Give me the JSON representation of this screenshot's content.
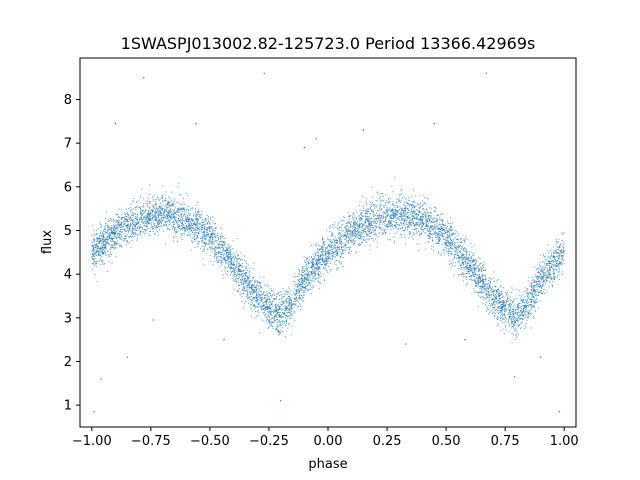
{
  "chart_data": {
    "type": "scatter",
    "title": "1SWASPJ013002.82-125723.0 Period 13366.42969s",
    "xlabel": "phase",
    "ylabel": "flux",
    "xlim": [
      -1.05,
      1.05
    ],
    "ylim": [
      0.5,
      8.95
    ],
    "xticks": [
      -1.0,
      -0.75,
      -0.5,
      -0.25,
      0.0,
      0.25,
      0.5,
      0.75,
      1.0
    ],
    "xtick_labels": [
      "−1.00",
      "−0.75",
      "−0.50",
      "−0.25",
      "0.00",
      "0.25",
      "0.50",
      "0.75",
      "1.00"
    ],
    "yticks": [
      1,
      2,
      3,
      4,
      5,
      6,
      7,
      8
    ],
    "ytick_labels": [
      "1",
      "2",
      "3",
      "4",
      "5",
      "6",
      "7",
      "8"
    ],
    "grid": false,
    "marker_color": "#1f77b4",
    "light_curve_profile": {
      "phase": [
        -1.0,
        -0.9,
        -0.8,
        -0.7,
        -0.6,
        -0.5,
        -0.4,
        -0.3,
        -0.25,
        -0.2,
        -0.15,
        -0.1,
        0.0,
        0.1,
        0.2,
        0.3,
        0.4,
        0.5,
        0.6,
        0.7,
        0.75,
        0.8,
        0.85,
        0.9,
        1.0
      ],
      "flux": [
        4.5,
        4.95,
        5.25,
        5.4,
        5.25,
        4.85,
        4.2,
        3.45,
        3.2,
        3.05,
        3.3,
        3.9,
        4.5,
        4.95,
        5.25,
        5.4,
        5.25,
        4.85,
        4.2,
        3.45,
        3.2,
        3.05,
        3.3,
        3.9,
        4.5
      ],
      "scatter_sigma": 0.22
    },
    "outliers": [
      {
        "x": -0.9,
        "y": 7.45
      },
      {
        "x": -0.78,
        "y": 8.5
      },
      {
        "x": -0.74,
        "y": 2.95
      },
      {
        "x": -0.56,
        "y": 7.45
      },
      {
        "x": -0.27,
        "y": 8.6
      },
      {
        "x": -0.05,
        "y": 7.1
      },
      {
        "x": 0.15,
        "y": 7.3
      },
      {
        "x": 0.33,
        "y": 2.4
      },
      {
        "x": 0.45,
        "y": 7.45
      },
      {
        "x": 0.67,
        "y": 8.6
      },
      {
        "x": 0.79,
        "y": 1.65
      },
      {
        "x": 0.98,
        "y": 0.85
      },
      {
        "x": -0.99,
        "y": 0.85
      },
      {
        "x": -0.96,
        "y": 1.6
      },
      {
        "x": -0.85,
        "y": 2.1
      },
      {
        "x": -0.44,
        "y": 2.5
      },
      {
        "x": -0.2,
        "y": 1.1
      },
      {
        "x": 0.58,
        "y": 2.5
      },
      {
        "x": 0.9,
        "y": 2.1
      },
      {
        "x": -0.1,
        "y": 6.9
      }
    ]
  }
}
